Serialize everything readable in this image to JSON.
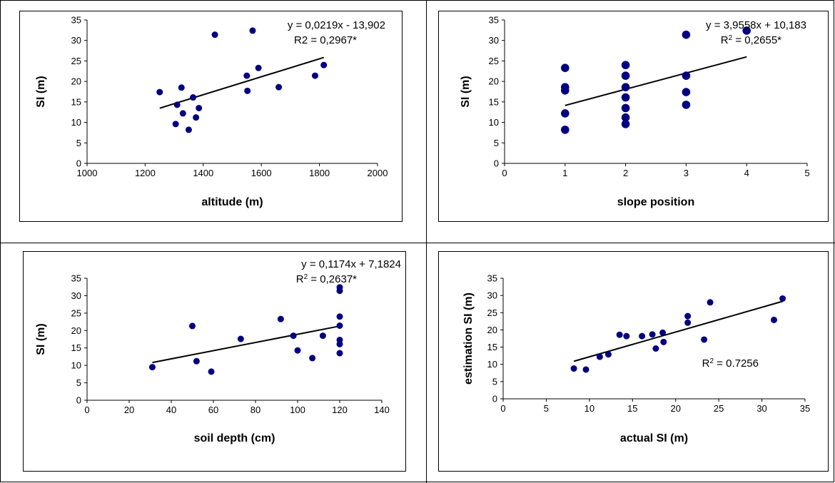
{
  "chart_data": [
    {
      "type": "scatter",
      "xlabel": "altitude (m)",
      "ylabel": "SI (m)",
      "xlim": [
        1000,
        2000
      ],
      "ylim": [
        0,
        35
      ],
      "xticks": [
        "1000",
        "1200",
        "1400",
        "1600",
        "1800",
        "2000"
      ],
      "yticks": [
        "0",
        "5",
        "10",
        "15",
        "20",
        "25",
        "30",
        "35"
      ],
      "equation": "y = 0,0219x - 13,902",
      "r2_prefix": "R2",
      "r2_value": " = 0,2967*",
      "grid": false,
      "marker_color": "#000080",
      "points": [
        [
          1250,
          17.4
        ],
        [
          1305,
          9.6
        ],
        [
          1310,
          14.3
        ],
        [
          1325,
          18.5
        ],
        [
          1330,
          12.2
        ],
        [
          1350,
          8.2
        ],
        [
          1365,
          16.1
        ],
        [
          1375,
          11.2
        ],
        [
          1385,
          13.5
        ],
        [
          1440,
          31.4
        ],
        [
          1550,
          21.4
        ],
        [
          1552,
          17.7
        ],
        [
          1570,
          32.4
        ],
        [
          1590,
          23.3
        ],
        [
          1660,
          18.6
        ],
        [
          1785,
          21.4
        ],
        [
          1815,
          24.0
        ]
      ],
      "trendline": [
        [
          1250,
          13.47
        ],
        [
          1815,
          25.85
        ]
      ]
    },
    {
      "type": "scatter",
      "xlabel": "slope position",
      "ylabel": "SI (m)",
      "xlim": [
        0,
        5
      ],
      "ylim": [
        0,
        35
      ],
      "xticks": [
        "0",
        "1",
        "2",
        "3",
        "4",
        "5"
      ],
      "yticks": [
        "0",
        "5",
        "10",
        "15",
        "20",
        "25",
        "30",
        "35"
      ],
      "equation": "y = 3,9558x + 10,183",
      "r2_prefix": "R",
      "r2_sup": "2",
      "r2_value": " = 0,2655*",
      "grid": false,
      "marker_color": "#000080",
      "points": [
        [
          1,
          23.3
        ],
        [
          1,
          18.6
        ],
        [
          1,
          17.8
        ],
        [
          1,
          12.2
        ],
        [
          1,
          8.2
        ],
        [
          2,
          24.0
        ],
        [
          2,
          21.4
        ],
        [
          2,
          18.6
        ],
        [
          2,
          16.1
        ],
        [
          2,
          13.5
        ],
        [
          2,
          11.2
        ],
        [
          2,
          9.6
        ],
        [
          3,
          31.4
        ],
        [
          3,
          21.4
        ],
        [
          3,
          17.4
        ],
        [
          3,
          14.3
        ],
        [
          4,
          32.4
        ]
      ],
      "trendline": [
        [
          1,
          14.14
        ],
        [
          4,
          26.0
        ]
      ]
    },
    {
      "type": "scatter",
      "xlabel": "soil depth (cm)",
      "ylabel": "SI (m)",
      "xlim": [
        0,
        140
      ],
      "ylim": [
        0,
        35
      ],
      "xticks": [
        "0",
        "20",
        "40",
        "60",
        "80",
        "100",
        "120",
        "140"
      ],
      "yticks": [
        "0",
        "5",
        "10",
        "15",
        "20",
        "25",
        "30",
        "35"
      ],
      "equation": "y = 0,1174x + 7,1824",
      "r2_prefix": "R",
      "r2_sup": "2",
      "r2_value": " = 0,2637*",
      "grid": false,
      "marker_color": "#000080",
      "points": [
        [
          31,
          9.5
        ],
        [
          50,
          21.3
        ],
        [
          52,
          11.2
        ],
        [
          59,
          8.2
        ],
        [
          73,
          17.6
        ],
        [
          92,
          23.3
        ],
        [
          98,
          18.5
        ],
        [
          100,
          14.3
        ],
        [
          107,
          12.1
        ],
        [
          112,
          18.5
        ],
        [
          120,
          32.4
        ],
        [
          120,
          31.4
        ],
        [
          120,
          24.0
        ],
        [
          120,
          21.4
        ],
        [
          120,
          17.3
        ],
        [
          120,
          16.1
        ],
        [
          120,
          13.5
        ]
      ],
      "trendline": [
        [
          31,
          10.82
        ],
        [
          120,
          21.27
        ]
      ]
    },
    {
      "type": "scatter",
      "xlabel": "actual SI (m)",
      "ylabel": "estimation SI (m)",
      "xlim": [
        0,
        35
      ],
      "ylim": [
        0,
        35
      ],
      "xticks": [
        "0",
        "5",
        "10",
        "15",
        "20",
        "25",
        "30",
        "35"
      ],
      "yticks": [
        "0",
        "5",
        "10",
        "15",
        "20",
        "25",
        "30",
        "35"
      ],
      "equation": "",
      "r2_prefix": "R",
      "r2_sup": "2",
      "r2_value": " = 0.7256",
      "grid": false,
      "marker_color": "#000080",
      "points": [
        [
          8.2,
          8.8
        ],
        [
          9.6,
          8.5
        ],
        [
          11.2,
          12.2
        ],
        [
          12.2,
          12.9
        ],
        [
          13.5,
          18.6
        ],
        [
          14.3,
          18.2
        ],
        [
          16.1,
          18.2
        ],
        [
          17.3,
          18.7
        ],
        [
          17.7,
          14.6
        ],
        [
          18.5,
          19.2
        ],
        [
          18.6,
          16.5
        ],
        [
          21.4,
          24.0
        ],
        [
          21.4,
          22.1
        ],
        [
          23.3,
          17.2
        ],
        [
          24.0,
          28.0
        ],
        [
          31.4,
          22.9
        ],
        [
          32.4,
          29.1
        ]
      ],
      "trendline": [
        [
          8.2,
          10.9
        ],
        [
          32.4,
          28.3
        ]
      ]
    }
  ]
}
